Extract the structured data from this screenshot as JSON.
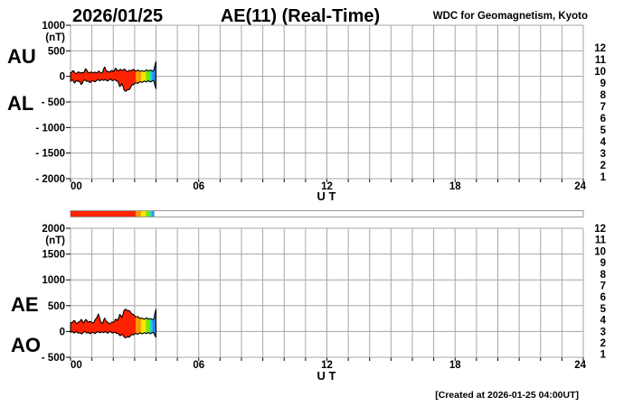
{
  "header": {
    "date": "2026/01/25",
    "title": "AE(11) (Real-Time)",
    "org": "WDC for Geomagnetism, Kyoto"
  },
  "footer": {
    "created": "[Created at 2026-01-25 04:00UT]"
  },
  "legend": {
    "meaning": "number-of-stations",
    "station_counts": [
      {
        "label": "12",
        "color": "#ee1177"
      },
      {
        "label": "11",
        "color": "#ff2200"
      },
      {
        "label": "10",
        "color": "#ff9900"
      },
      {
        "label": "9",
        "color": "#ffe600"
      },
      {
        "label": "8",
        "color": "#77e600"
      },
      {
        "label": "7",
        "color": "#00ddbb"
      },
      {
        "label": "6",
        "color": "#2288ff"
      },
      {
        "label": "5",
        "color": "#5522ee"
      },
      {
        "label": "4",
        "color": "#ee22ee"
      },
      {
        "label": "3",
        "color": "#111111"
      },
      {
        "label": "2",
        "color": "#909090"
      },
      {
        "label": "1",
        "color": "#c8c8c8"
      }
    ]
  },
  "availability_bar": {
    "xlim": [
      0,
      24
    ],
    "border_color": "#999999",
    "segments": [
      {
        "from": 0,
        "to": 3.05,
        "color": "#ff2200"
      },
      {
        "from": 3.05,
        "to": 3.3,
        "color": "#ff9900"
      },
      {
        "from": 3.3,
        "to": 3.52,
        "color": "#ffe600"
      },
      {
        "from": 3.52,
        "to": 3.73,
        "color": "#77e600"
      },
      {
        "from": 3.73,
        "to": 3.82,
        "color": "#00ddbb"
      },
      {
        "from": 3.82,
        "to": 3.92,
        "color": "#2288ff"
      }
    ]
  },
  "chart_data": [
    {
      "type": "area",
      "panel": "top",
      "left_labels": [
        "AU",
        "AL"
      ],
      "unit": "(nT)",
      "ylim": [
        -2000,
        1000
      ],
      "yticks": [
        1000,
        500,
        0,
        -500,
        -1000,
        -1500,
        -2000
      ],
      "xlim": [
        0,
        24
      ],
      "xticks": [
        {
          "t": 0,
          "label": "00"
        },
        {
          "t": 6,
          "label": "06"
        },
        {
          "t": 12,
          "label": "12"
        },
        {
          "t": 18,
          "label": "18"
        },
        {
          "t": 24,
          "label": "24"
        }
      ],
      "xlabel": "U T",
      "x_start": 0,
      "x_step": 0.1,
      "series": [
        {
          "name": "AU",
          "values": [
            70,
            110,
            75,
            60,
            85,
            70,
            65,
            150,
            90,
            70,
            80,
            75,
            70,
            100,
            70,
            80,
            185,
            95,
            85,
            115,
            90,
            160,
            110,
            130,
            120,
            140,
            110,
            100,
            115,
            130,
            120,
            110,
            115,
            105,
            100,
            110,
            120,
            115,
            110,
            120,
            290
          ]
        },
        {
          "name": "AL",
          "values": [
            -100,
            -70,
            -130,
            -80,
            -95,
            -160,
            -90,
            -75,
            -95,
            -120,
            -85,
            -100,
            -90,
            -65,
            -80,
            -70,
            -65,
            -85,
            -70,
            -60,
            -80,
            -70,
            -90,
            -200,
            -140,
            -260,
            -290,
            -260,
            -230,
            -160,
            -140,
            -130,
            -120,
            -110,
            -105,
            -100,
            -95,
            -100,
            -95,
            -90,
            -240
          ]
        }
      ],
      "color_segments": [
        {
          "from": 0,
          "to": 3.05,
          "color": "#ff2200"
        },
        {
          "from": 3.05,
          "to": 3.3,
          "color": "#ff9900"
        },
        {
          "from": 3.3,
          "to": 3.52,
          "color": "#ffe600"
        },
        {
          "from": 3.52,
          "to": 3.73,
          "color": "#77e600"
        },
        {
          "from": 3.73,
          "to": 3.82,
          "color": "#00ddbb"
        },
        {
          "from": 3.82,
          "to": 4.0,
          "color": "#2288ff"
        }
      ]
    },
    {
      "type": "area",
      "panel": "bottom",
      "left_labels": [
        "AE",
        "AO"
      ],
      "unit": "(nT)",
      "ylim": [
        -500,
        2000
      ],
      "yticks": [
        2000,
        1500,
        1000,
        500,
        0,
        -500
      ],
      "xlim": [
        0,
        24
      ],
      "xticks": [
        {
          "t": 0,
          "label": "00"
        },
        {
          "t": 6,
          "label": "06"
        },
        {
          "t": 12,
          "label": "12"
        },
        {
          "t": 18,
          "label": "18"
        },
        {
          "t": 24,
          "label": "24"
        }
      ],
      "xlabel": "U T",
      "x_start": 0,
      "x_step": 0.1,
      "series": [
        {
          "name": "AE",
          "values": [
            170,
            185,
            210,
            150,
            185,
            235,
            160,
            230,
            190,
            195,
            170,
            180,
            250,
            340,
            200,
            155,
            260,
            185,
            150,
            170,
            175,
            235,
            210,
            330,
            270,
            400,
            430,
            405,
            380,
            335,
            305,
            285,
            270,
            255,
            245,
            250,
            255,
            245,
            235,
            245,
            430
          ]
        },
        {
          "name": "AO",
          "values": [
            -20,
            -5,
            -25,
            -10,
            -30,
            -45,
            -15,
            -10,
            -25,
            -40,
            -20,
            -30,
            -25,
            -5,
            -20,
            -15,
            -10,
            -25,
            -15,
            -10,
            -25,
            -20,
            -35,
            -80,
            -55,
            -100,
            -120,
            -105,
            -90,
            -60,
            -50,
            -45,
            -40,
            -35,
            -35,
            -30,
            -30,
            -35,
            -30,
            -30,
            -110
          ]
        }
      ],
      "color_segments": [
        {
          "from": 0,
          "to": 3.05,
          "color": "#ff2200"
        },
        {
          "from": 3.05,
          "to": 3.3,
          "color": "#ff9900"
        },
        {
          "from": 3.3,
          "to": 3.52,
          "color": "#ffe600"
        },
        {
          "from": 3.52,
          "to": 3.73,
          "color": "#77e600"
        },
        {
          "from": 3.73,
          "to": 3.82,
          "color": "#00ddbb"
        },
        {
          "from": 3.82,
          "to": 4.0,
          "color": "#2288ff"
        }
      ]
    }
  ]
}
